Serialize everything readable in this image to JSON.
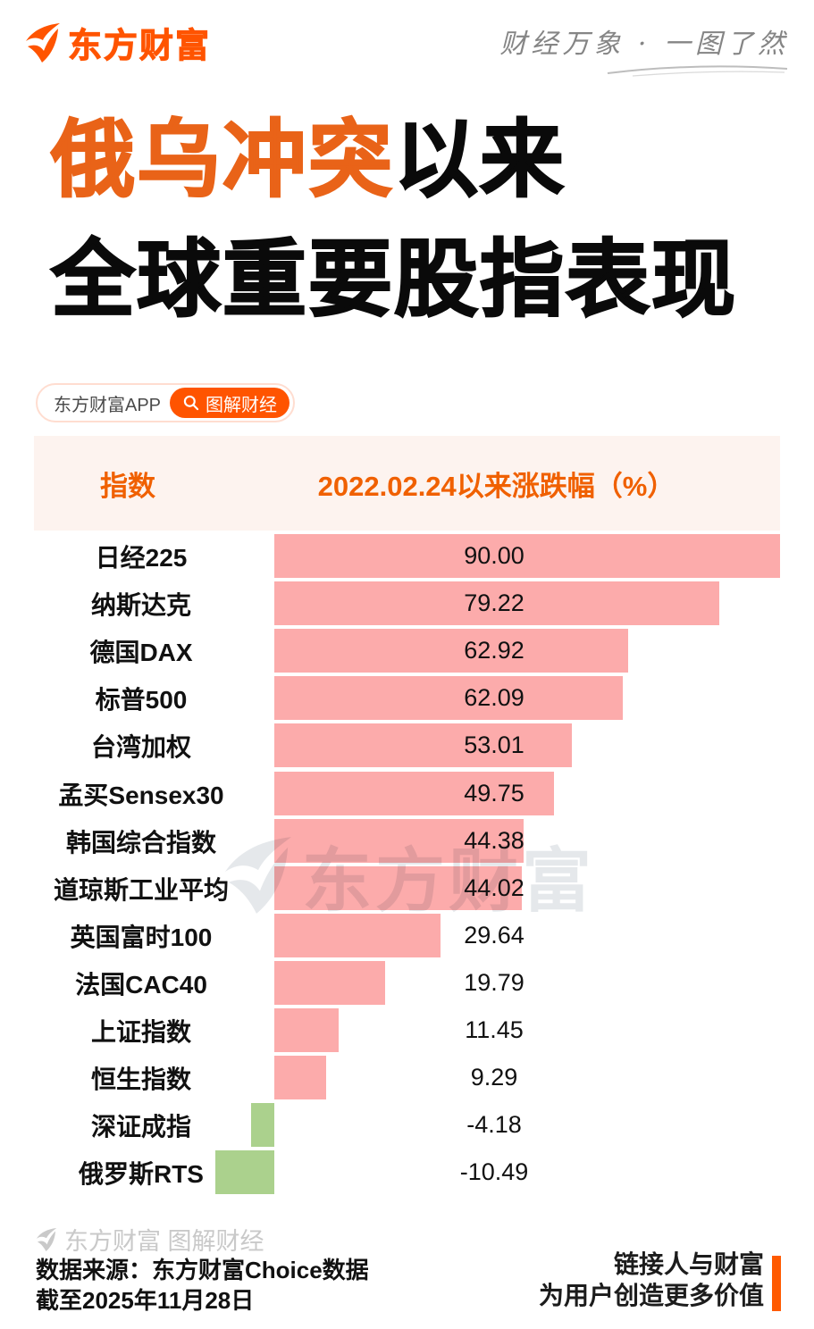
{
  "brand": {
    "logo_text": "东方财富",
    "tagline": "财经万象 · 一图了然"
  },
  "title": {
    "highlight": "俄乌冲突",
    "line1_rest": "以来",
    "line2": "全球重要股指表现"
  },
  "badge": {
    "app_label": "东方财富APP",
    "button_label": "图解财经"
  },
  "table_header": {
    "col_index": "指数",
    "col_change": "2022.02.24以来涨跌幅（%）"
  },
  "chart_data": {
    "type": "bar",
    "orientation": "horizontal",
    "title": "2022.02.24以来涨跌幅（%）",
    "xlabel": "涨跌幅（%）",
    "ylabel": "指数",
    "categories": [
      "日经225",
      "纳斯达克",
      "德国DAX",
      "标普500",
      "台湾加权",
      "孟买Sensex30",
      "韩国综合指数",
      "道琼斯工业平均",
      "英国富时100",
      "法国CAC40",
      "上证指数",
      "恒生指数",
      "深证成指",
      "俄罗斯RTS"
    ],
    "values": [
      90.0,
      79.22,
      62.92,
      62.09,
      53.01,
      49.75,
      44.38,
      44.02,
      29.64,
      19.79,
      11.45,
      9.29,
      -4.18,
      -10.49
    ],
    "value_labels": [
      "90.00",
      "79.22",
      "62.92",
      "62.09",
      "53.01",
      "49.75",
      "44.38",
      "44.02",
      "29.64",
      "19.79",
      "11.45",
      "9.29",
      "-4.18",
      "-10.49"
    ],
    "xlim": [
      -10.49,
      90
    ],
    "grid": false,
    "legend": false,
    "colors": {
      "positive": "#fcabab",
      "negative": "#abd18d"
    }
  },
  "watermark": {
    "logo_text": "东方财富"
  },
  "footer": {
    "brand_line": "东方财富 图解财经",
    "source": "数据来源：东方财富Choice数据",
    "cutoff": "截至2025年11月28日",
    "slogan_line1": "链接人与财富",
    "slogan_line2": "为用户创造更多价值"
  },
  "colors": {
    "accent": "#ff5400",
    "title_highlight": "#e96318",
    "header_bg": "#fdf3ef",
    "header_text": "#f06000",
    "bar_positive": "#fcabab",
    "bar_negative": "#abd18d",
    "slogan_bar": "#ff5a00",
    "gray_text": "#c9c9c9"
  }
}
